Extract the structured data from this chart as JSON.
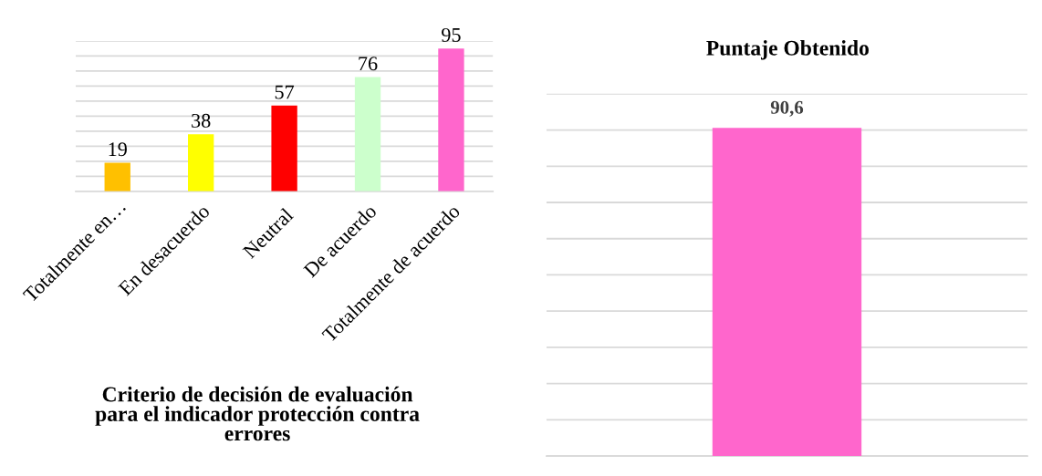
{
  "chart_data": [
    {
      "type": "bar",
      "title": "Criterio de decisión de evaluación para el indicador protección contra errores",
      "categories": [
        "Totalmente en…",
        "En desacuerdo",
        "Neutral",
        "De acuerdo",
        "Totalmente de acuerdo"
      ],
      "values": [
        19,
        38,
        57,
        76,
        95
      ],
      "colors": [
        "#ffc000",
        "#ffff00",
        "#ff0000",
        "#ccffcc",
        "#ff66cc"
      ],
      "ylim": [
        0,
        100
      ],
      "yticks": [
        {
          "value": 0,
          "label": null
        },
        {
          "value": 10,
          "label": null
        },
        {
          "value": 20,
          "label": null
        },
        {
          "value": 30,
          "label": null
        },
        {
          "value": 40,
          "label": null
        },
        {
          "value": 50,
          "label": null
        },
        {
          "value": 60,
          "label": null
        },
        {
          "value": 70,
          "label": null
        },
        {
          "value": 80,
          "label": null
        },
        {
          "value": 90,
          "label": null
        },
        {
          "value": 100,
          "label": null
        }
      ],
      "grid": "y",
      "tick_labels": "x",
      "data_labels": true
    },
    {
      "type": "bar",
      "title": "Puntaje Obtenido",
      "categories": [
        null
      ],
      "values": [
        90.6
      ],
      "colors": [
        "#ff66cc"
      ],
      "ylim": [
        0,
        100
      ],
      "yticks": [
        {
          "value": 0,
          "label": null
        },
        {
          "value": 10,
          "label": null
        },
        {
          "value": 20,
          "label": null
        },
        {
          "value": 30,
          "label": null
        },
        {
          "value": 40,
          "label": null
        },
        {
          "value": 50,
          "label": null
        },
        {
          "value": 60,
          "label": null
        },
        {
          "value": 70,
          "label": null
        },
        {
          "value": 80,
          "label": null
        },
        {
          "value": 90,
          "label": null
        },
        {
          "value": 100,
          "label": null
        }
      ],
      "grid": "y",
      "tick_labels": false,
      "value_labels": [
        "90,6"
      ]
    }
  ]
}
